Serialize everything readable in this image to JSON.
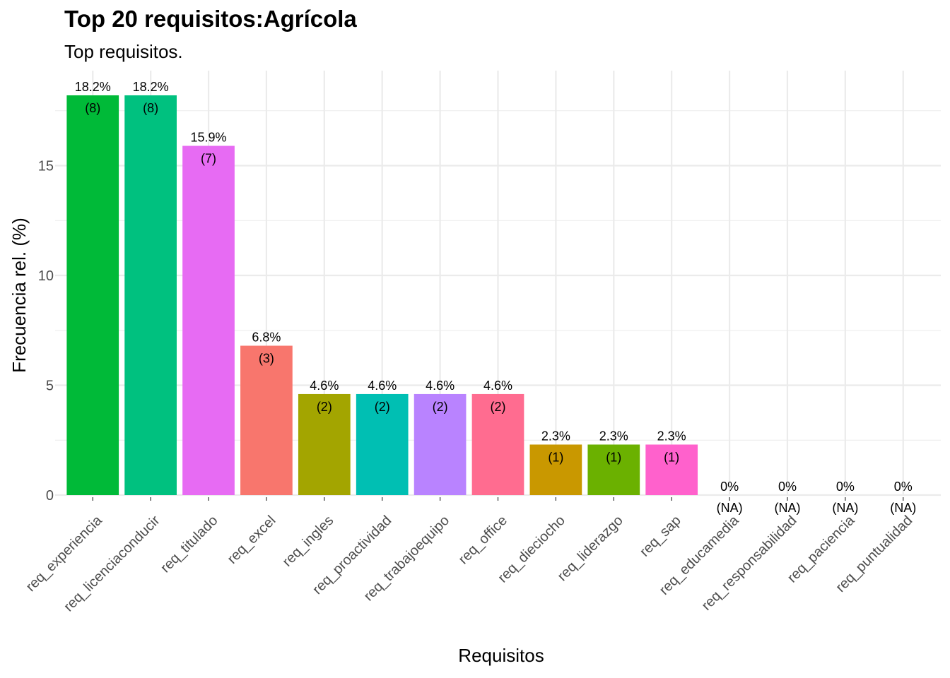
{
  "chart_data": {
    "type": "bar",
    "title": "Top 20 requisitos:Agrícola",
    "subtitle": "Top requisitos.",
    "xlabel": "Requisitos",
    "ylabel": "Frecuencia rel. (%)",
    "ylim": [
      0,
      18.2
    ],
    "yticks": [
      0,
      5,
      10,
      15
    ],
    "grid": true,
    "legend": "none",
    "categories": [
      "req_experiencia",
      "req_licenciaconducir",
      "req_titulado",
      "req_excel",
      "req_ingles",
      "req_proactividad",
      "req_trabajoequipo",
      "req_office",
      "req_dieciocho",
      "req_liderazgo",
      "req_sap",
      "req_educamedia",
      "req_responsabilidad",
      "req_paciencia",
      "req_puntualidad"
    ],
    "values": [
      18.2,
      18.2,
      15.9,
      6.8,
      4.6,
      4.6,
      4.6,
      4.6,
      2.3,
      2.3,
      2.3,
      0,
      0,
      0,
      0
    ],
    "pct_labels": [
      "18.2%",
      "18.2%",
      "15.9%",
      "6.8%",
      "4.6%",
      "4.6%",
      "4.6%",
      "4.6%",
      "2.3%",
      "2.3%",
      "2.3%",
      "0%",
      "0%",
      "0%",
      "0%"
    ],
    "count_labels": [
      "(8)",
      "(8)",
      "(7)",
      "(3)",
      "(2)",
      "(2)",
      "(2)",
      "(2)",
      "(1)",
      "(1)",
      "(1)",
      "(NA)",
      "(NA)",
      "(NA)",
      "(NA)"
    ],
    "colors": [
      "#00BA38",
      "#00C17F",
      "#E76BF3",
      "#F8766D",
      "#A3A500",
      "#00BFB3",
      "#B983FF",
      "#FF6C90",
      "#C99800",
      "#6BB100",
      "#FF61CC",
      "#00BCD8",
      "#00B0F6",
      "#619CFF",
      "#FD61D1"
    ]
  }
}
